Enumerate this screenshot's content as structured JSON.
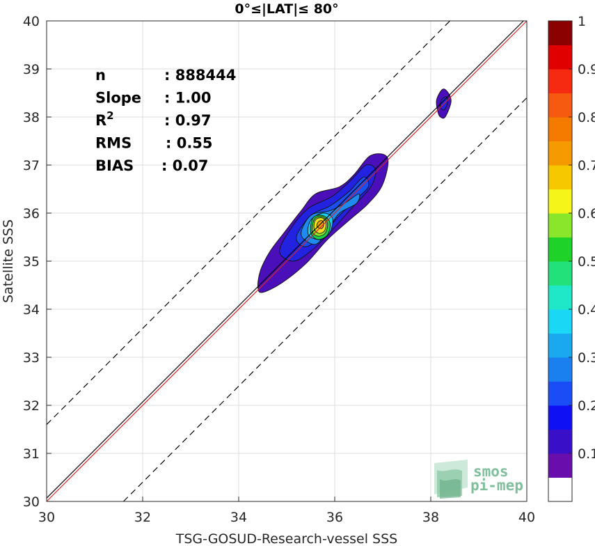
{
  "chart_data": {
    "type": "contour",
    "title": "0°≤|LAT|≤ 80°",
    "xlabel": "TSG-GOSUD-Research-vessel SSS",
    "ylabel": "Satellite SSS",
    "xlim": [
      30,
      40
    ],
    "ylim": [
      30,
      40
    ],
    "xticks": [
      "30",
      "32",
      "34",
      "36",
      "38",
      "40"
    ],
    "yticks": [
      "30",
      "31",
      "32",
      "33",
      "34",
      "35",
      "36",
      "37",
      "38",
      "39",
      "40"
    ],
    "grid": true,
    "stats": [
      {
        "name": "n",
        "value": ": 888444"
      },
      {
        "name": "Slope",
        "value": ": 1.00"
      },
      {
        "name": "R²",
        "value": ": 0.97"
      },
      {
        "name": "RMS",
        "value": ": 0.55"
      },
      {
        "name": "BIAS",
        "value": ": 0.07"
      }
    ],
    "reference_lines": [
      {
        "name": "1:1 line",
        "slope": 1,
        "intercept": 0,
        "color": "#d62728"
      },
      {
        "name": "fit",
        "slope": 1.0,
        "intercept": 0.07,
        "color": "#000000"
      },
      {
        "name": "upper bound",
        "slope": 1,
        "intercept": 1.6,
        "style": "dashed",
        "color": "#000000"
      },
      {
        "name": "lower bound",
        "slope": 1,
        "intercept": -1.6,
        "style": "dashed",
        "color": "#000000"
      }
    ],
    "contours": [
      {
        "level": 0.05,
        "color": "#4a0fb8",
        "points": [
          [
            34.4,
            34.45
          ],
          [
            34.45,
            34.8
          ],
          [
            34.65,
            35.2
          ],
          [
            34.95,
            35.6
          ],
          [
            35.3,
            36.05
          ],
          [
            35.6,
            36.4
          ],
          [
            36.1,
            36.55
          ],
          [
            36.4,
            36.8
          ],
          [
            36.75,
            37.2
          ],
          [
            37.1,
            37.15
          ],
          [
            37.0,
            36.6
          ],
          [
            36.7,
            36.2
          ],
          [
            36.3,
            35.85
          ],
          [
            35.85,
            35.45
          ],
          [
            35.4,
            34.95
          ],
          [
            34.9,
            34.55
          ],
          [
            34.5,
            34.35
          ]
        ]
      },
      {
        "level": 0.15,
        "color": "#2222e0",
        "points": [
          [
            34.85,
            35.2
          ],
          [
            35.1,
            35.7
          ],
          [
            35.45,
            36.1
          ],
          [
            35.95,
            36.35
          ],
          [
            36.35,
            36.7
          ],
          [
            36.65,
            37.0
          ],
          [
            36.85,
            36.9
          ],
          [
            36.75,
            36.55
          ],
          [
            36.35,
            36.1
          ],
          [
            35.9,
            35.6
          ],
          [
            35.55,
            35.25
          ],
          [
            35.15,
            35.0
          ]
        ]
      },
      {
        "level": 0.2,
        "color": "#1b4ff0",
        "points": [
          [
            35.2,
            35.5
          ],
          [
            35.5,
            35.95
          ],
          [
            35.9,
            36.15
          ],
          [
            36.3,
            36.45
          ],
          [
            36.6,
            36.75
          ],
          [
            36.7,
            36.55
          ],
          [
            36.4,
            36.25
          ],
          [
            36.05,
            35.9
          ],
          [
            35.75,
            35.55
          ],
          [
            35.4,
            35.3
          ]
        ]
      },
      {
        "level": 0.25,
        "color": "#1f8af0",
        "points": [
          [
            35.3,
            35.55
          ],
          [
            35.5,
            35.95
          ],
          [
            35.9,
            36.05
          ],
          [
            36.2,
            36.2
          ],
          [
            36.5,
            36.4
          ],
          [
            36.45,
            36.2
          ],
          [
            36.1,
            36.0
          ],
          [
            35.85,
            35.65
          ],
          [
            35.6,
            35.35
          ]
        ]
      },
      {
        "level": 0.35,
        "color": "#19d0f0",
        "points": [
          [
            35.45,
            35.55
          ],
          [
            35.5,
            35.85
          ],
          [
            35.75,
            36.0
          ],
          [
            35.95,
            35.9
          ],
          [
            35.9,
            35.6
          ],
          [
            35.7,
            35.45
          ]
        ]
      },
      {
        "level": 0.5,
        "color": "#1fd14a",
        "points": [
          [
            35.5,
            35.6
          ],
          [
            35.55,
            35.9
          ],
          [
            35.75,
            35.95
          ],
          [
            35.9,
            35.8
          ],
          [
            35.85,
            35.55
          ],
          [
            35.65,
            35.45
          ]
        ]
      },
      {
        "level": 0.55,
        "color": "#8ae62a",
        "points": [
          [
            35.53,
            35.62
          ],
          [
            35.58,
            35.88
          ],
          [
            35.75,
            35.92
          ],
          [
            35.85,
            35.78
          ],
          [
            35.8,
            35.58
          ],
          [
            35.65,
            35.52
          ]
        ]
      },
      {
        "level": 0.65,
        "color": "#f0e020",
        "points": [
          [
            35.57,
            35.68
          ],
          [
            35.6,
            35.86
          ],
          [
            35.74,
            35.9
          ],
          [
            35.82,
            35.78
          ],
          [
            35.78,
            35.62
          ],
          [
            35.66,
            35.58
          ]
        ]
      },
      {
        "level": 0.7,
        "color": "#f5a800",
        "points": [
          [
            35.63,
            35.72
          ],
          [
            35.66,
            35.82
          ],
          [
            35.74,
            35.84
          ],
          [
            35.77,
            35.76
          ],
          [
            35.73,
            35.68
          ]
        ]
      },
      {
        "level": 0.05,
        "color": "#4a0fb8",
        "points": [
          [
            38.15,
            38.1
          ],
          [
            38.12,
            38.35
          ],
          [
            38.25,
            38.58
          ],
          [
            38.38,
            38.48
          ],
          [
            38.42,
            38.3
          ],
          [
            38.3,
            38.0
          ],
          [
            38.2,
            38.0
          ]
        ]
      },
      {
        "level": 0.15,
        "color": "#2222e0",
        "points": [
          [
            38.2,
            38.2
          ],
          [
            38.22,
            38.35
          ],
          [
            38.32,
            38.42
          ],
          [
            38.35,
            38.3
          ],
          [
            38.28,
            38.15
          ]
        ]
      }
    ],
    "colorbar": {
      "ticks": [
        "0.1",
        "0.2",
        "0.3",
        "0.4",
        "0.5",
        "0.6",
        "0.7",
        "0.8",
        "0.9",
        "1"
      ],
      "range": [
        0,
        1
      ],
      "levels": [
        {
          "from": 0.0,
          "to": 0.05,
          "color": "#ffffff"
        },
        {
          "from": 0.05,
          "to": 0.1,
          "color": "#6a0dad"
        },
        {
          "from": 0.1,
          "to": 0.15,
          "color": "#3a0fc8"
        },
        {
          "from": 0.15,
          "to": 0.2,
          "color": "#1010f5"
        },
        {
          "from": 0.2,
          "to": 0.25,
          "color": "#1a4df5"
        },
        {
          "from": 0.25,
          "to": 0.3,
          "color": "#1a80f0"
        },
        {
          "from": 0.3,
          "to": 0.35,
          "color": "#1aa8ef"
        },
        {
          "from": 0.35,
          "to": 0.4,
          "color": "#1ad8f5"
        },
        {
          "from": 0.4,
          "to": 0.45,
          "color": "#1ee8c8"
        },
        {
          "from": 0.45,
          "to": 0.5,
          "color": "#22e07a"
        },
        {
          "from": 0.5,
          "to": 0.55,
          "color": "#1ed22a"
        },
        {
          "from": 0.55,
          "to": 0.6,
          "color": "#8ae62a"
        },
        {
          "from": 0.6,
          "to": 0.65,
          "color": "#f5f51a"
        },
        {
          "from": 0.65,
          "to": 0.7,
          "color": "#f5c800"
        },
        {
          "from": 0.7,
          "to": 0.75,
          "color": "#f59a00"
        },
        {
          "from": 0.75,
          "to": 0.8,
          "color": "#f57a00"
        },
        {
          "from": 0.8,
          "to": 0.85,
          "color": "#f55a10"
        },
        {
          "from": 0.85,
          "to": 0.9,
          "color": "#f52a10"
        },
        {
          "from": 0.9,
          "to": 0.95,
          "color": "#e00000"
        },
        {
          "from": 0.95,
          "to": 1.0,
          "color": "#8b0000"
        }
      ]
    },
    "logo": {
      "line1": "smos",
      "line2": "pi-mep"
    }
  }
}
